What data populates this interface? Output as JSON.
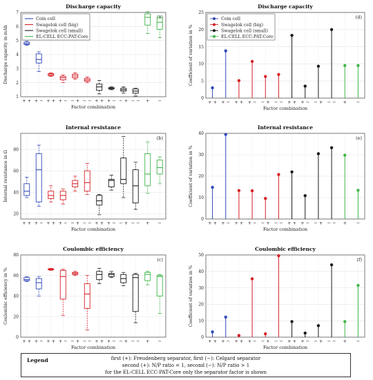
{
  "series_legend": [
    {
      "name": "Coin cell",
      "color": "#2f49b8"
    },
    {
      "name": "Swagelok cell (big)",
      "color": "#d62027"
    },
    {
      "name": "Swagelok cell (small)",
      "color": "#1a1a1a"
    },
    {
      "name": "EL-CELL ECC-PAT-Core",
      "color": "#3fb548"
    }
  ],
  "factor_labels": [
    "+ +",
    "+ −",
    "− +",
    "− −"
  ],
  "el_cell_labels": [
    "+",
    "−"
  ],
  "group_colors": [
    "#2f49b8",
    "#d62027",
    "#1a1a1a",
    "#3fb548"
  ],
  "chart_data": [
    {
      "id": "a",
      "type": "box",
      "title": "Discharge capacity",
      "xlabel": "Factor combination",
      "ylabel": "Discharge capacity in mAh",
      "ylim": [
        1,
        7
      ],
      "yticks": [
        1,
        2,
        3,
        4,
        5,
        6,
        7
      ],
      "panel_label": "(a)",
      "boxes": [
        {
          "group": 0,
          "min": 4.65,
          "q1": 4.72,
          "med": 4.78,
          "q3": 4.88,
          "max": 4.95
        },
        {
          "group": 0,
          "min": 2.8,
          "q1": 3.4,
          "med": 3.65,
          "q3": 4.05,
          "max": 4.2
        },
        {
          "group": 1,
          "min": 2.45,
          "q1": 2.5,
          "med": 2.58,
          "q3": 2.65,
          "max": 2.7
        },
        {
          "group": 1,
          "min": 2.0,
          "q1": 2.2,
          "med": 2.35,
          "q3": 2.45,
          "max": 2.55
        },
        {
          "group": 1,
          "min": 2.25,
          "q1": 2.35,
          "med": 2.48,
          "q3": 2.6,
          "max": 2.7
        },
        {
          "group": 1,
          "min": 2.0,
          "q1": 2.1,
          "med": 2.2,
          "q3": 2.3,
          "max": 2.4
        },
        {
          "group": 2,
          "min": 1.2,
          "q1": 1.45,
          "med": 1.7,
          "q3": 1.9,
          "max": 2.15
        },
        {
          "group": 2,
          "min": 1.5,
          "q1": 1.55,
          "med": 1.6,
          "q3": 1.65,
          "max": 1.7
        },
        {
          "group": 2,
          "min": 1.25,
          "q1": 1.4,
          "med": 1.5,
          "q3": 1.6,
          "max": 1.7
        },
        {
          "group": 2,
          "min": 1.05,
          "q1": 1.25,
          "med": 1.4,
          "q3": 1.55,
          "max": 1.6
        },
        {
          "group": 3,
          "min": 5.5,
          "q1": 6.1,
          "med": 6.65,
          "q3": 6.9,
          "max": 7.05
        },
        {
          "group": 3,
          "min": 5.2,
          "q1": 5.8,
          "med": 6.3,
          "q3": 6.6,
          "max": 6.75
        }
      ]
    },
    {
      "id": "b",
      "type": "box",
      "title": "Internal resistance",
      "xlabel": "Factor combination",
      "ylabel": "Internal resistance in Ω",
      "ylim": [
        15,
        95
      ],
      "yticks": [
        20,
        40,
        60,
        80
      ],
      "panel_label": "(b)",
      "boxes": [
        {
          "group": 0,
          "min": 35,
          "q1": 37,
          "med": 41,
          "q3": 48,
          "max": 54
        },
        {
          "group": 0,
          "min": 27,
          "q1": 31,
          "med": 61,
          "q3": 76,
          "max": 84
        },
        {
          "group": 1,
          "min": 31,
          "q1": 34,
          "med": 37,
          "q3": 41,
          "max": 46
        },
        {
          "group": 1,
          "min": 29,
          "q1": 33,
          "med": 37,
          "q3": 41,
          "max": 43
        },
        {
          "group": 1,
          "min": 41,
          "q1": 45,
          "med": 48,
          "q3": 51,
          "max": 55
        },
        {
          "group": 1,
          "min": 38,
          "q1": 41,
          "med": 49,
          "q3": 60,
          "max": 67
        },
        {
          "group": 2,
          "min": 19,
          "q1": 28,
          "med": 32,
          "q3": 37,
          "max": 38
        },
        {
          "group": 2,
          "min": 42,
          "q1": 45,
          "med": 51,
          "q3": 52,
          "max": 56
        },
        {
          "group": 2,
          "min": 35,
          "q1": 48,
          "med": 52,
          "q3": 72,
          "max": 92
        },
        {
          "group": 2,
          "min": 24,
          "q1": 30,
          "med": 46,
          "q3": 61,
          "max": 68
        },
        {
          "group": 3,
          "min": 39,
          "q1": 46,
          "med": 57,
          "q3": 76,
          "max": 87
        },
        {
          "group": 3,
          "min": 48,
          "q1": 57,
          "med": 63,
          "q3": 70,
          "max": 73
        }
      ]
    },
    {
      "id": "c",
      "type": "box",
      "title": "Coulombic efficiency",
      "xlabel": "Factor combination",
      "ylabel": "Coulombic efficiency in %",
      "ylim": [
        0,
        80
      ],
      "yticks": [
        0,
        20,
        40,
        60,
        80
      ],
      "panel_label": "(c)",
      "boxes": [
        {
          "group": 0,
          "min": 54,
          "q1": 55,
          "med": 56,
          "q3": 58,
          "max": 59
        },
        {
          "group": 0,
          "min": 40,
          "q1": 47,
          "med": 53,
          "q3": 57,
          "max": 59
        },
        {
          "group": 1,
          "min": 65,
          "q1": 65.5,
          "med": 66,
          "q3": 66.5,
          "max": 67
        },
        {
          "group": 1,
          "min": 21,
          "q1": 37,
          "med": 59,
          "q3": 65,
          "max": 66
        },
        {
          "group": 1,
          "min": 60,
          "q1": 61,
          "med": 62,
          "q3": 63,
          "max": 64
        },
        {
          "group": 1,
          "min": 7,
          "q1": 28,
          "med": 42,
          "q3": 52,
          "max": 60
        },
        {
          "group": 2,
          "min": 52,
          "q1": 56,
          "med": 61,
          "q3": 64,
          "max": 67
        },
        {
          "group": 2,
          "min": 58,
          "q1": 59,
          "med": 61,
          "q3": 62,
          "max": 64
        },
        {
          "group": 2,
          "min": 50,
          "q1": 53,
          "med": 57,
          "q3": 61,
          "max": 63
        },
        {
          "group": 2,
          "min": 14,
          "q1": 25,
          "med": 58,
          "q3": 61,
          "max": 62
        },
        {
          "group": 3,
          "min": 51,
          "q1": 55,
          "med": 61,
          "q3": 63,
          "max": 64
        },
        {
          "group": 3,
          "min": 23,
          "q1": 40,
          "med": 59,
          "q3": 60,
          "max": 61
        }
      ]
    },
    {
      "id": "d",
      "type": "stem",
      "title": "Discharge capacity",
      "xlabel": "Factor combination",
      "ylabel": "Coefficient of variation in %",
      "ylim": [
        0,
        25
      ],
      "yticks": [
        0,
        5,
        10,
        15,
        20,
        25
      ],
      "panel_label": "(d)",
      "values": [
        3.0,
        13.8,
        5.1,
        10.7,
        6.3,
        6.9,
        18.3,
        3.5,
        9.3,
        20.0,
        9.5,
        9.5
      ]
    },
    {
      "id": "e",
      "type": "stem",
      "title": "Internal resistance",
      "xlabel": "Factor combination",
      "ylabel": "Coefficient of variation in %",
      "ylim": [
        0,
        40
      ],
      "yticks": [
        0,
        10,
        20,
        30,
        40
      ],
      "panel_label": "(e)",
      "values": [
        14.8,
        39.5,
        13.3,
        13.2,
        9.6,
        20.8,
        22.0,
        10.9,
        30.5,
        33.3,
        29.8,
        13.4
      ]
    },
    {
      "id": "f",
      "type": "stem",
      "title": "Coulombic efficiency",
      "xlabel": "Factor combination",
      "ylabel": "Coefficient of variation in %",
      "ylim": [
        0,
        50
      ],
      "yticks": [
        0,
        10,
        20,
        30,
        40,
        50
      ],
      "panel_label": "(f)",
      "values": [
        3.2,
        12.2,
        1.0,
        35.5,
        2.0,
        49.5,
        9.5,
        2.5,
        7.0,
        44.0,
        9.5,
        31.5
      ]
    }
  ],
  "legend_box": {
    "title": "Legend",
    "lines": [
      "first (+): Freudenberg separator, first (−): Celgard separator",
      "second (+): N/P ratio = 1, second (−): N/P ratio > 1",
      "for the EL-CELL ECC-PAT-Core only the separator factor is shown"
    ]
  }
}
